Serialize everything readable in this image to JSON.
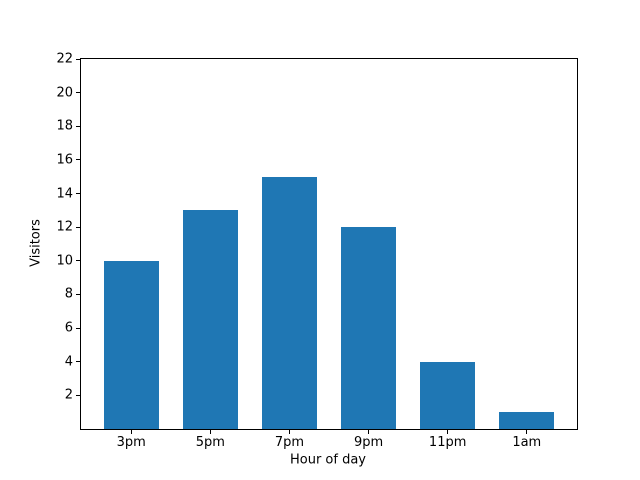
{
  "chart_data": {
    "type": "bar",
    "title": "",
    "xlabel": "Hour of day",
    "ylabel": "Visitors",
    "categories": [
      "3pm",
      "5pm",
      "7pm",
      "9pm",
      "11pm",
      "1am"
    ],
    "values": [
      10,
      13,
      15,
      12,
      4,
      1
    ],
    "yticks": [
      2,
      4,
      6,
      8,
      10,
      12,
      14,
      16,
      18,
      20,
      22
    ],
    "ylim": [
      0,
      22
    ],
    "xlim": [
      -0.635,
      5.635
    ],
    "bar_width": 0.7,
    "bar_color": "#1f77b4",
    "spine_color": "#000000",
    "background_color": "#ffffff",
    "grid": false,
    "legend": null
  }
}
